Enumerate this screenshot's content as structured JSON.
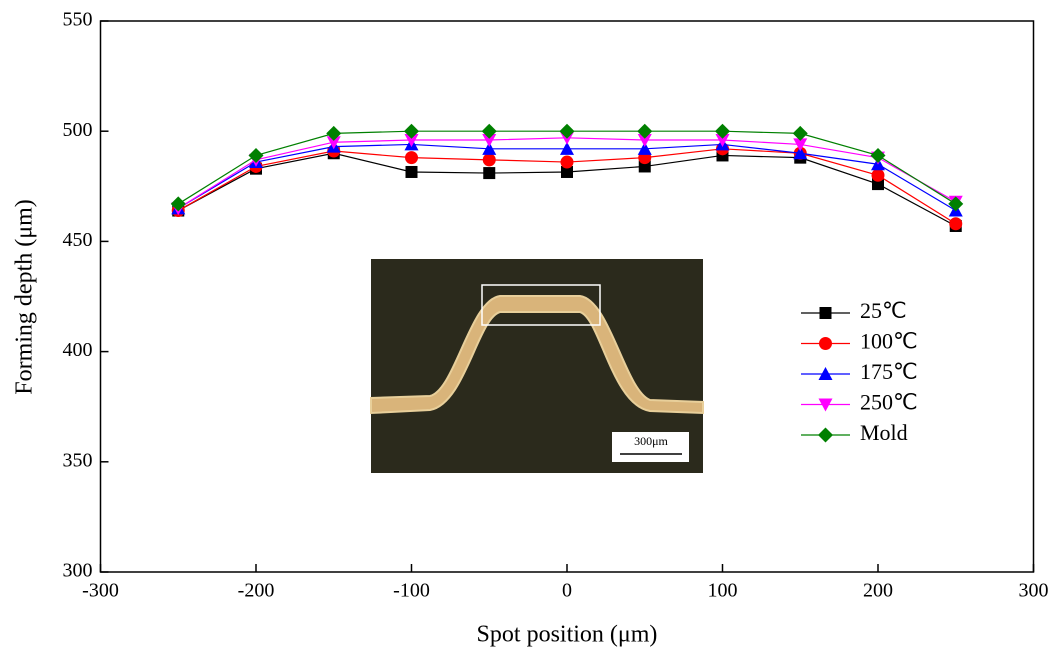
{
  "chart_data": {
    "type": "line",
    "x_label": "Spot position (μm)",
    "y_label": "Forming depth (μm)",
    "x": [
      -250,
      -200,
      -150,
      -100,
      -50,
      0,
      50,
      100,
      150,
      200,
      250
    ],
    "series": [
      {
        "name": "25℃",
        "color": "#000000",
        "marker": "square",
        "values": [
          464,
          483,
          490,
          481.5,
          481,
          481.5,
          484,
          489,
          488,
          476,
          457
        ]
      },
      {
        "name": "100℃",
        "color": "#ff0000",
        "marker": "circle",
        "values": [
          464,
          484,
          491,
          488,
          487,
          486,
          488,
          492,
          490,
          480,
          458
        ]
      },
      {
        "name": "175℃",
        "color": "#0000ff",
        "marker": "triangle-up",
        "values": [
          465,
          486,
          493,
          494,
          492,
          492,
          492,
          494,
          490,
          485,
          464
        ]
      },
      {
        "name": "250℃",
        "color": "#ff00ff",
        "marker": "triangle-down",
        "values": [
          465,
          487,
          495,
          496,
          496,
          497,
          496,
          496,
          494,
          488,
          468
        ]
      },
      {
        "name": "Mold",
        "color": "#008000",
        "marker": "diamond",
        "values": [
          467,
          489,
          499,
          500,
          500,
          500,
          500,
          500,
          499,
          489,
          467
        ]
      }
    ],
    "xlim": [
      -300,
      300
    ],
    "xticks": [
      -300,
      -200,
      -100,
      0,
      100,
      200,
      300
    ],
    "ylim": [
      300,
      550
    ],
    "yticks": [
      300,
      350,
      400,
      450,
      500,
      550
    ],
    "inset_scale_label": "300μm"
  }
}
